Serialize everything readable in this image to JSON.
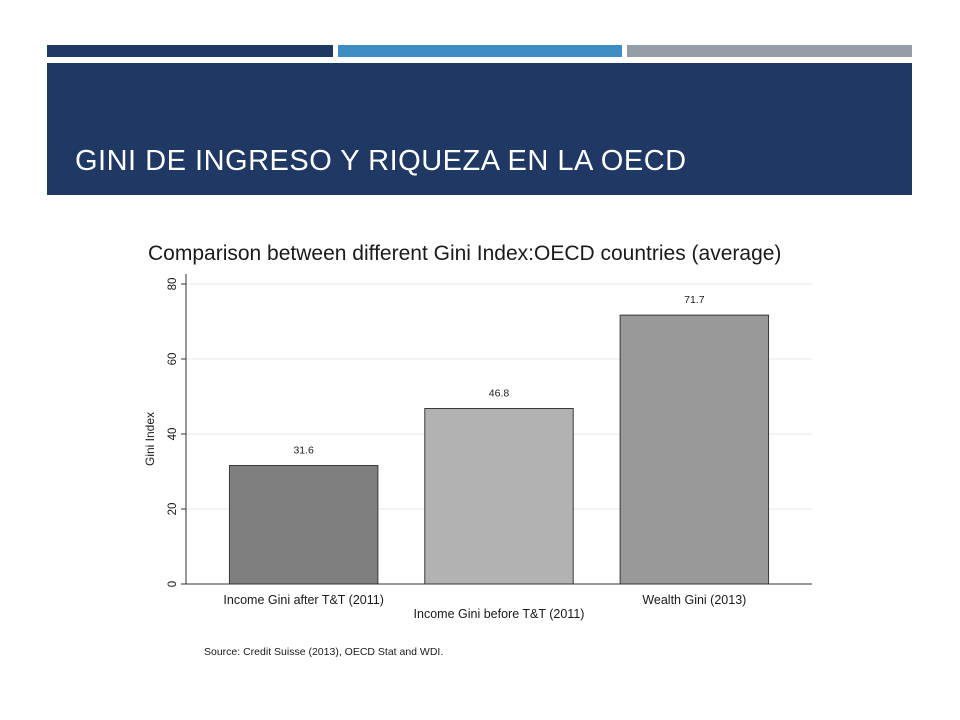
{
  "slide": {
    "title": "GINI DE INGRESO Y RIQUEZA EN LA OECD"
  },
  "colors": {
    "title_band": "#1f3864",
    "strip_1": "#1f3864",
    "strip_2": "#3e8ec4",
    "strip_3": "#959da6"
  },
  "chart_data": {
    "type": "bar",
    "title": "Comparison between different Gini Index:OECD countries (average)",
    "ylabel": "Gini Index",
    "xlabel": "",
    "ylim": [
      0,
      80
    ],
    "yticks": [
      "0",
      "20",
      "40",
      "60",
      "80"
    ],
    "grid": true,
    "categories": [
      "Income Gini after T&T (2011)",
      "Income Gini before T&T (2011)",
      "Wealth Gini (2013)"
    ],
    "values": [
      31.6,
      46.8,
      71.7
    ],
    "value_labels": [
      "31.6",
      "46.8",
      "71.7"
    ],
    "bar_colors": [
      "#7f7f7f",
      "#b2b2b2",
      "#999999"
    ],
    "source": "Source: Credit Suisse (2013), OECD Stat and WDI."
  }
}
